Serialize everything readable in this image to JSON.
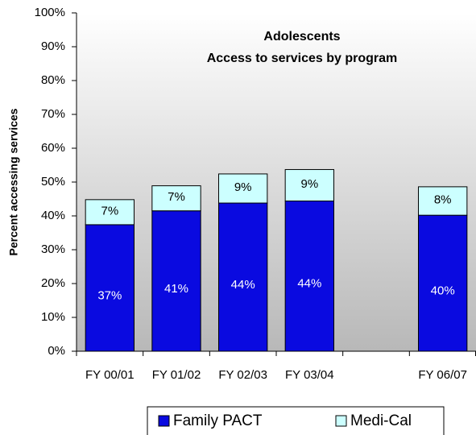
{
  "chart_data": {
    "type": "stacked_bar",
    "title": "Adolescents",
    "subtitle": "Access to services by program",
    "y_label": "Percent accessing services",
    "categories": [
      "FY 00/01",
      "FY 01/02",
      "FY 02/03",
      "FY 03/04",
      null,
      "FY 06/07"
    ],
    "series": [
      {
        "name": "Family PACT",
        "color": "#0a0ae0",
        "values": [
          37.4,
          41.5,
          43.8,
          44.4,
          null,
          40.2
        ],
        "value_labels": [
          "37%",
          "41%",
          "44%",
          "44%",
          null,
          "40%"
        ]
      },
      {
        "name": "Medi-Cal",
        "color": "#ccffff",
        "values": [
          7.4,
          7.4,
          8.6,
          9.3,
          null,
          8.4
        ],
        "value_labels": [
          "7%",
          "7%",
          "9%",
          "9%",
          null,
          "8%"
        ]
      }
    ],
    "ylim": [
      0,
      100
    ],
    "yticks": [
      {
        "value": 0,
        "label": "0%"
      },
      {
        "value": 10,
        "label": "10%"
      },
      {
        "value": 20,
        "label": "20%"
      },
      {
        "value": 30,
        "label": "30%"
      },
      {
        "value": 40,
        "label": "40%"
      },
      {
        "value": 50,
        "label": "50%"
      },
      {
        "value": 60,
        "label": "60%"
      },
      {
        "value": 70,
        "label": "70%"
      },
      {
        "value": 80,
        "label": "80%"
      },
      {
        "value": 90,
        "label": "90%"
      },
      {
        "value": 100,
        "label": "100%"
      }
    ],
    "legend": "bottom"
  }
}
